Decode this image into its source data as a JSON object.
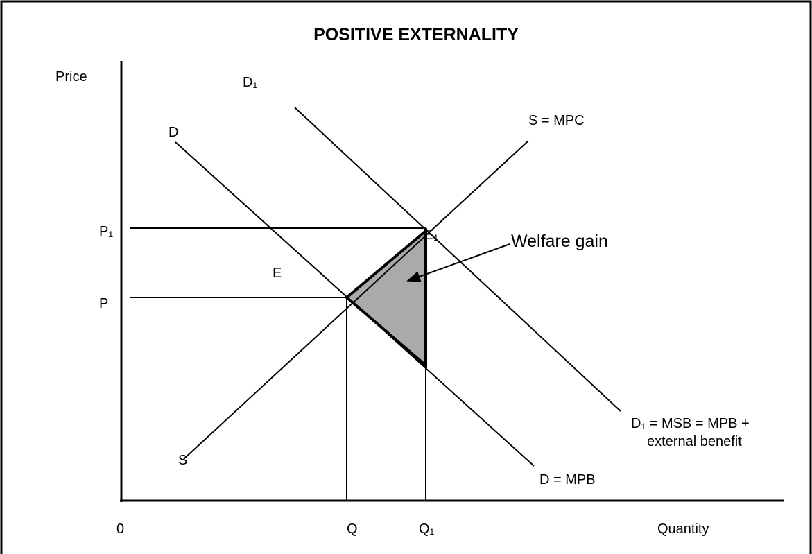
{
  "title": "POSITIVE EXTERNALITY",
  "axes": {
    "y_label": "Price",
    "x_label": "Quantity",
    "origin": "0"
  },
  "price_labels": [
    "P₁",
    "P"
  ],
  "quantity_labels": [
    "Q",
    "Q₁"
  ],
  "curve_labels": [
    "D₁",
    "D",
    "S = MPC",
    "S",
    "D = MPB",
    "D₁ = MSB = MPB +",
    "external benefit"
  ],
  "point_labels": [
    "E",
    "E₁"
  ],
  "annotation": "Welfare gain"
}
